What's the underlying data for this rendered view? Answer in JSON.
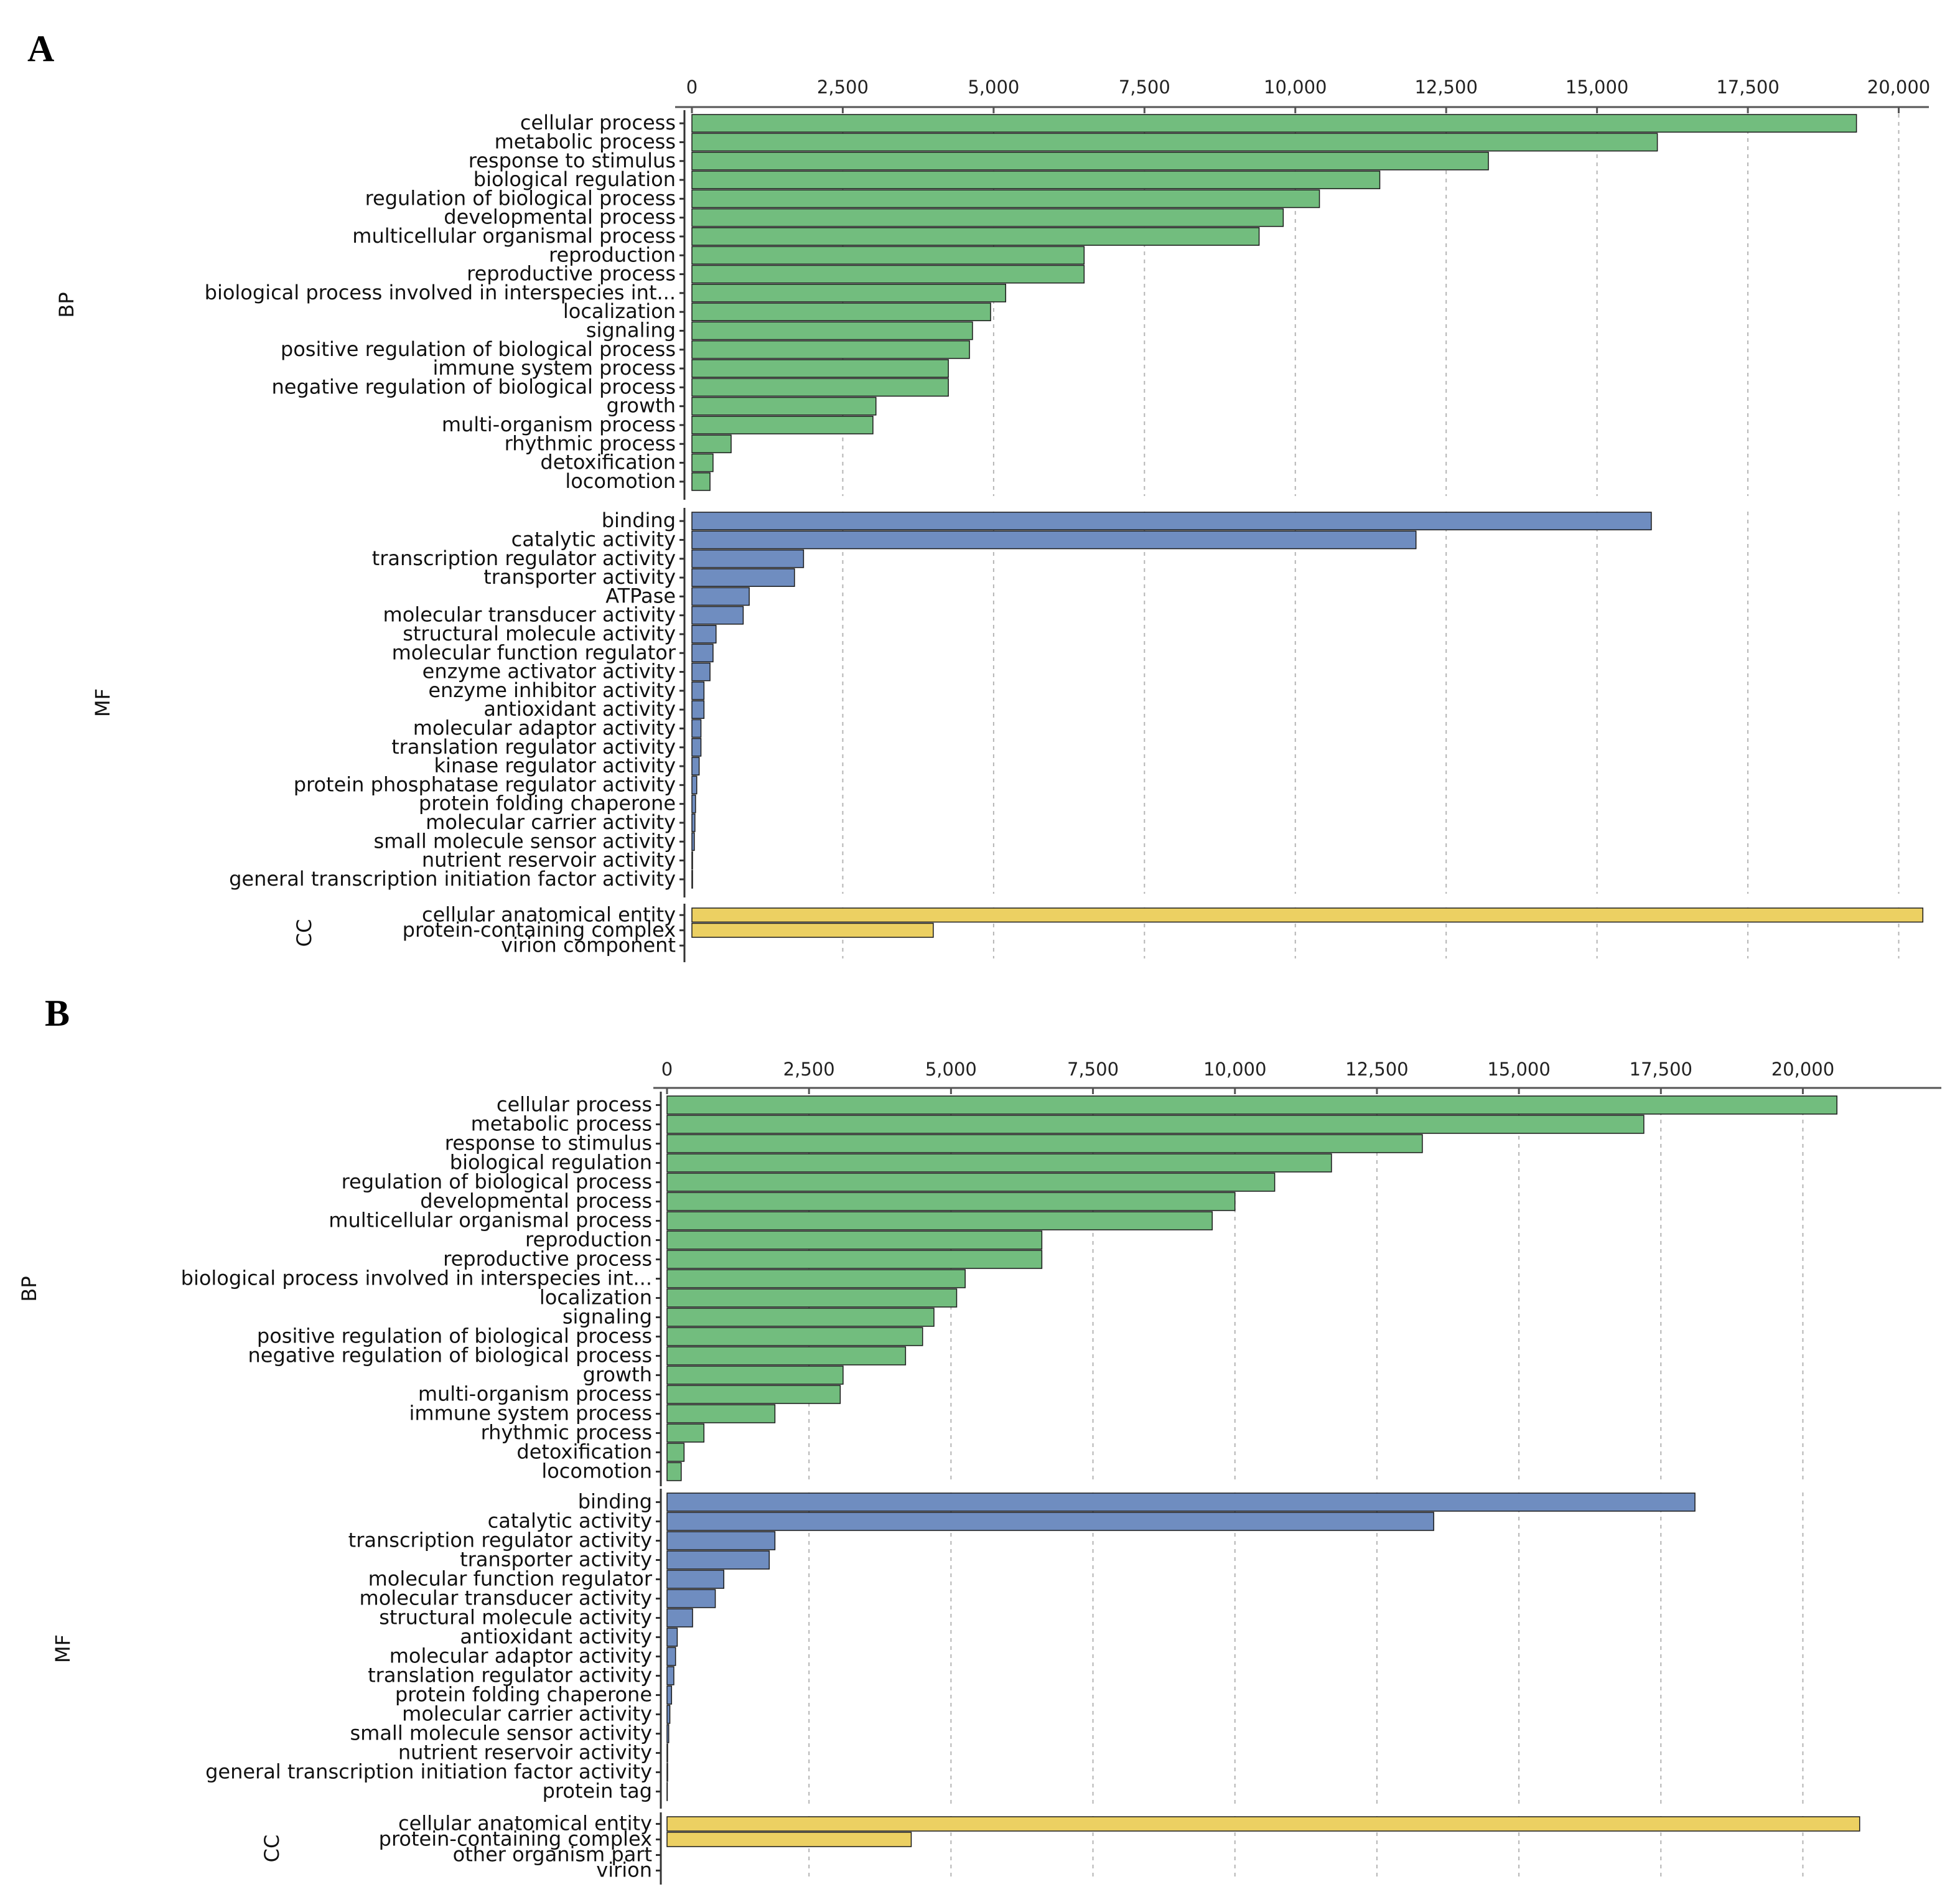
{
  "chart_data": [
    {
      "panel": "A",
      "type": "bar",
      "orientation": "horizontal",
      "xlim": [
        0,
        20500
      ],
      "ticks": [
        {
          "value": 0,
          "label": "0"
        },
        {
          "value": 2500,
          "label": "2,500"
        },
        {
          "value": 5000,
          "label": "5,000"
        },
        {
          "value": 7500,
          "label": "7,500"
        },
        {
          "value": 10000,
          "label": "10,000"
        },
        {
          "value": 12500,
          "label": "12,500"
        },
        {
          "value": 15000,
          "label": "15,000"
        },
        {
          "value": 17500,
          "label": "17,500"
        },
        {
          "value": 20000,
          "label": "20,000"
        }
      ],
      "groups": [
        {
          "name": "BP",
          "color": "#72bd7e",
          "categories": [
            "cellular process",
            "metabolic process",
            "response to stimulus",
            "biological regulation",
            "regulation of biological process",
            "developmental process",
            "multicellular organismal process",
            "reproduction",
            "reproductive process",
            "biological process involved in interspecies int...",
            "localization",
            "signaling",
            "positive regulation of biological process",
            "immune system process",
            "negative regulation of biological process",
            "growth",
            "multi-organism process",
            "rhythmic process",
            "detoxification",
            "locomotion"
          ],
          "values": [
            19300,
            16000,
            13200,
            11400,
            10400,
            9800,
            9400,
            6500,
            6500,
            5200,
            4950,
            4650,
            4600,
            4250,
            4250,
            3050,
            3000,
            650,
            350,
            300
          ]
        },
        {
          "name": "MF",
          "color": "#6f8dc0",
          "categories": [
            "binding",
            "catalytic activity",
            "transcription regulator activity",
            "transporter activity",
            "ATPase",
            "molecular transducer activity",
            "structural molecule activity",
            "molecular function regulator",
            "enzyme activator activity",
            "enzyme inhibitor activity",
            "antioxidant activity",
            "molecular adaptor activity",
            "translation regulator activity",
            "kinase regulator activity",
            "protein phosphatase regulator activity",
            "protein folding chaperone",
            "molecular carrier activity",
            "small molecule sensor activity",
            "nutrient reservoir activity",
            "general transcription initiation factor activity"
          ],
          "values": [
            15900,
            12000,
            1850,
            1700,
            950,
            850,
            400,
            350,
            300,
            200,
            200,
            150,
            150,
            120,
            80,
            60,
            50,
            40,
            10,
            10
          ]
        },
        {
          "name": "CC",
          "color": "#ecd062",
          "categories": [
            "cellular anatomical entity",
            "protein-containing complex",
            "virion component"
          ],
          "values": [
            20400,
            4000,
            0
          ]
        }
      ]
    },
    {
      "panel": "B",
      "type": "bar",
      "orientation": "horizontal",
      "xlim": [
        0,
        22000
      ],
      "ticks": [
        {
          "value": 0,
          "label": "0"
        },
        {
          "value": 2500,
          "label": "2,500"
        },
        {
          "value": 5000,
          "label": "5,000"
        },
        {
          "value": 7500,
          "label": "7,500"
        },
        {
          "value": 10000,
          "label": "10,000"
        },
        {
          "value": 12500,
          "label": "12,500"
        },
        {
          "value": 15000,
          "label": "15,000"
        },
        {
          "value": 17500,
          "label": "17,500"
        },
        {
          "value": 20000,
          "label": "20,000"
        }
      ],
      "groups": [
        {
          "name": "BP",
          "color": "#72bd7e",
          "categories": [
            "cellular process",
            "metabolic process",
            "response to stimulus",
            "biological regulation",
            "regulation of biological process",
            "developmental process",
            "multicellular organismal process",
            "reproduction",
            "reproductive process",
            "biological process involved in interspecies int...",
            "localization",
            "signaling",
            "positive regulation of biological process",
            "negative regulation of biological process",
            "growth",
            "multi-organism process",
            "immune system process",
            "rhythmic process",
            "detoxification",
            "locomotion"
          ],
          "values": [
            20600,
            17200,
            13300,
            11700,
            10700,
            10000,
            9600,
            6600,
            6600,
            5250,
            5100,
            4700,
            4500,
            4200,
            3100,
            3050,
            1900,
            650,
            300,
            250
          ]
        },
        {
          "name": "MF",
          "color": "#6f8dc0",
          "categories": [
            "binding",
            "catalytic activity",
            "transcription regulator activity",
            "transporter activity",
            "molecular function regulator",
            "molecular transducer activity",
            "structural molecule activity",
            "antioxidant activity",
            "molecular adaptor activity",
            "translation regulator activity",
            "protein folding chaperone",
            "molecular carrier activity",
            "small molecule sensor activity",
            "nutrient reservoir activity",
            "general transcription initiation factor activity",
            "protein tag"
          ],
          "values": [
            18100,
            13500,
            1900,
            1800,
            1000,
            850,
            450,
            180,
            150,
            120,
            80,
            50,
            30,
            10,
            10,
            5
          ]
        },
        {
          "name": "CC",
          "color": "#ecd062",
          "categories": [
            "cellular anatomical entity",
            "protein-containing complex",
            "other organism part",
            "virion"
          ],
          "values": [
            21000,
            4300,
            0,
            0
          ]
        }
      ]
    }
  ]
}
